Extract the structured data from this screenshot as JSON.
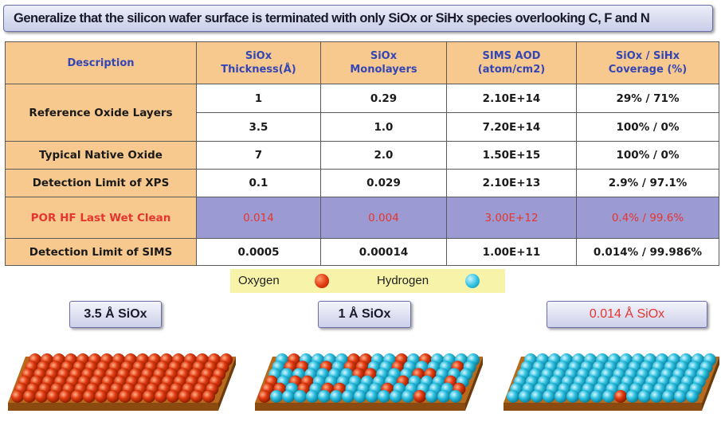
{
  "banner": {
    "title": "Generalize that the silicon wafer surface is terminated with only SiOx or SiHx species overlooking C, F and N"
  },
  "table": {
    "headers": {
      "description": "Description",
      "thickness": "SiOx\nThickness(Å)",
      "monolayers": "SiOx\nMonolayers",
      "aod": "SIMS AOD\n(atom/cm2)",
      "coverage": "SiOx / SiHx\nCoverage (%)"
    },
    "rows": [
      {
        "description": "Reference Oxide Layers",
        "thickness": "1",
        "monolayers": "0.29",
        "aod": "2.10E+14",
        "coverage": "29% / 71%"
      },
      {
        "description": "",
        "thickness": "3.5",
        "monolayers": "1.0",
        "aod": "7.20E+14",
        "coverage": "100% / 0%"
      },
      {
        "description": "Typical Native Oxide",
        "thickness": "7",
        "monolayers": "2.0",
        "aod": "1.50E+15",
        "coverage": "100% / 0%"
      },
      {
        "description": "Detection Limit of XPS",
        "thickness": "0.1",
        "monolayers": "0.029",
        "aod": "2.10E+13",
        "coverage": "2.9% / 97.1%"
      },
      {
        "description": "POR HF Last Wet Clean",
        "thickness": "0.014",
        "monolayers": "0.004",
        "aod": "3.00E+12",
        "coverage": "0.4% / 99.6%"
      },
      {
        "description": "Detection Limit of SIMS",
        "thickness": "0.0005",
        "monolayers": "0.00014",
        "aod": "1.00E+11",
        "coverage": "0.014% / 99.986%"
      }
    ]
  },
  "legend": {
    "oxygen": "Oxygen",
    "hydrogen": "Hydrogen"
  },
  "colors": {
    "oxygen": "#e03a10",
    "hydrogen": "#2ec0e0",
    "header_fill": "#f7c98f",
    "highlight_fill": "#9b9ad2",
    "highlight_text": "#e6352e"
  },
  "wafers": [
    {
      "label": "3.5 Å SiOx",
      "oxygen_fraction": 1.0
    },
    {
      "label": "1 Å SiOx",
      "oxygen_fraction": 0.29
    },
    {
      "label": "0.014 Å SiOx",
      "oxygen_fraction": 0.004
    }
  ]
}
